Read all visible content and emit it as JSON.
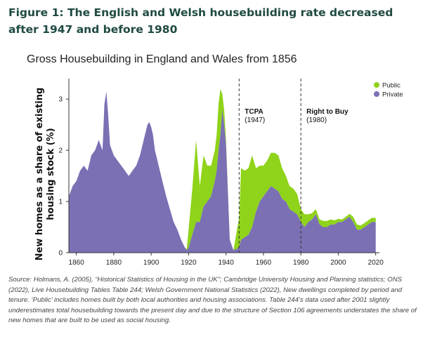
{
  "figure_title": "Figure 1: The English and Welsh housebuilding rate decreased after 1947 and before 1980",
  "source_note": "Source: Holmans, A. (2005), “Historical Statistics of Housing in the UK”; Cambridge University Housing and Planning statistics; ONS (2022), Live Housebuilding Tables Table 244; Welsh Government National Statistics (2022), New dwellings completed by period and tenure. ‘Public’ includes homes built by both local authorities and housing associations. Table 244’s data used after 2001 slightly underestimates total housebuilding towards the present day and due to the structure of Section 106 agreements understates the share of new homes that are built to be used as social housing.",
  "colors": {
    "public": "#8fd31a",
    "private": "#7b70b4",
    "title": "#1f4a42",
    "axis": "#333333"
  },
  "chart_data": {
    "type": "area",
    "stacked": true,
    "title": "Gross Housebuilding in England and Wales from 1856",
    "ylabel": "New homes as a share of existing housing stock (%)",
    "xlabel": "",
    "xlim": [
      1856,
      2022
    ],
    "ylim": [
      0,
      3.4
    ],
    "xticks": [
      1860,
      1880,
      1900,
      1920,
      1940,
      1960,
      1980,
      2000,
      2020
    ],
    "yticks": [
      0,
      1,
      2,
      3
    ],
    "grid": false,
    "legend_position": "top-right",
    "x": [
      1856,
      1858,
      1860,
      1862,
      1864,
      1866,
      1868,
      1870,
      1872,
      1874,
      1875,
      1876,
      1877,
      1878,
      1880,
      1882,
      1884,
      1886,
      1888,
      1890,
      1892,
      1894,
      1896,
      1898,
      1899,
      1900,
      1901,
      1902,
      1904,
      1906,
      1908,
      1910,
      1912,
      1914,
      1916,
      1918,
      1919,
      1920,
      1922,
      1924,
      1926,
      1928,
      1930,
      1932,
      1934,
      1935,
      1936,
      1937,
      1938,
      1939,
      1940,
      1942,
      1944,
      1946,
      1947,
      1948,
      1950,
      1952,
      1954,
      1956,
      1958,
      1960,
      1962,
      1964,
      1966,
      1968,
      1970,
      1972,
      1974,
      1976,
      1978,
      1980,
      1982,
      1984,
      1986,
      1988,
      1990,
      1992,
      1994,
      1996,
      1998,
      2000,
      2002,
      2004,
      2006,
      2008,
      2010,
      2012,
      2014,
      2016,
      2018,
      2020
    ],
    "series": [
      {
        "name": "Private",
        "values": [
          1.1,
          1.3,
          1.4,
          1.6,
          1.7,
          1.6,
          1.9,
          2.0,
          2.2,
          2.0,
          2.9,
          3.15,
          2.7,
          2.1,
          1.9,
          1.8,
          1.7,
          1.6,
          1.5,
          1.6,
          1.7,
          1.9,
          2.2,
          2.5,
          2.55,
          2.45,
          2.3,
          2.0,
          1.7,
          1.4,
          1.1,
          0.85,
          0.6,
          0.45,
          0.25,
          0.1,
          0.05,
          0.1,
          0.35,
          0.6,
          0.6,
          0.9,
          1.0,
          1.1,
          1.4,
          1.6,
          2.0,
          2.3,
          2.8,
          2.5,
          2.1,
          0.25,
          0.05,
          0.08,
          0.12,
          0.25,
          0.3,
          0.35,
          0.5,
          0.8,
          1.0,
          1.1,
          1.2,
          1.3,
          1.25,
          1.2,
          1.05,
          1.0,
          0.85,
          0.8,
          0.75,
          0.6,
          0.5,
          0.6,
          0.65,
          0.75,
          0.55,
          0.5,
          0.5,
          0.55,
          0.55,
          0.6,
          0.6,
          0.65,
          0.7,
          0.6,
          0.45,
          0.45,
          0.5,
          0.55,
          0.6,
          0.6
        ]
      },
      {
        "name": "Public",
        "values": [
          0,
          0,
          0,
          0,
          0,
          0,
          0,
          0,
          0,
          0,
          0,
          0,
          0,
          0,
          0,
          0,
          0,
          0,
          0,
          0,
          0,
          0,
          0,
          0,
          0,
          0,
          0,
          0,
          0,
          0,
          0,
          0,
          0,
          0,
          0,
          0,
          0.02,
          0.35,
          0.9,
          1.6,
          0.7,
          1.0,
          0.7,
          0.6,
          0.6,
          0.7,
          0.9,
          0.9,
          0.3,
          0.3,
          0.1,
          0.0,
          0.0,
          0.4,
          0.55,
          1.4,
          1.3,
          1.3,
          1.4,
          0.85,
          0.7,
          0.6,
          0.6,
          0.65,
          0.7,
          0.7,
          0.6,
          0.5,
          0.45,
          0.45,
          0.4,
          0.25,
          0.25,
          0.15,
          0.12,
          0.1,
          0.1,
          0.12,
          0.12,
          0.1,
          0.08,
          0.06,
          0.05,
          0.05,
          0.06,
          0.1,
          0.1,
          0.08,
          0.08,
          0.08,
          0.08,
          0.08
        ]
      }
    ],
    "annotations": [
      {
        "x": 1947,
        "label": "TCPA",
        "sublabel": "(1947)"
      },
      {
        "x": 1980,
        "label": "Right to Buy",
        "sublabel": "(1980)"
      }
    ]
  }
}
